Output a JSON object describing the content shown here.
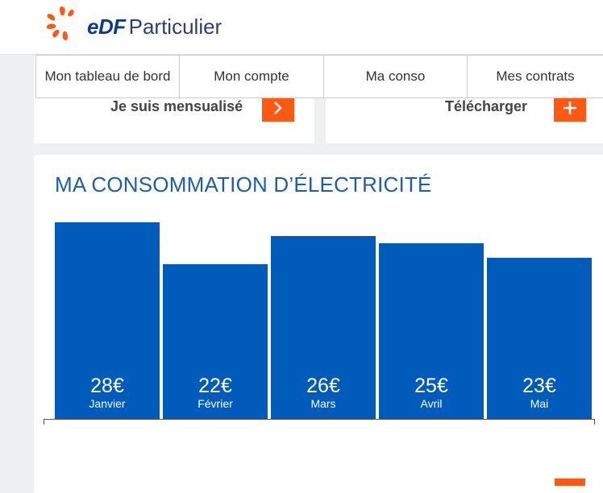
{
  "header": {
    "brand_edf": "eDF",
    "brand_name": "Particulier"
  },
  "cards": {
    "left_label": "Je suis mensualisé",
    "right_label": "Télécharger"
  },
  "tabs": [
    {
      "label": "Mon tableau de bord"
    },
    {
      "label": "Mon compte"
    },
    {
      "label": "Ma conso"
    },
    {
      "label": "Mes contrats"
    }
  ],
  "section": {
    "title": "MA CONSOMMATION D’ÉLECTRICITÉ"
  },
  "colors": {
    "bar": "#005bbb",
    "accent": "#fe5815",
    "title": "#1b5db6"
  },
  "chart_data": {
    "type": "bar",
    "categories": [
      "Janvier",
      "Février",
      "Mars",
      "Avril",
      "Mai"
    ],
    "values": [
      28,
      22,
      26,
      25,
      23
    ],
    "value_labels": [
      "28€",
      "22€",
      "26€",
      "25€",
      "23€"
    ],
    "unit": "€",
    "ylim": [
      0,
      28
    ],
    "grid": false
  }
}
